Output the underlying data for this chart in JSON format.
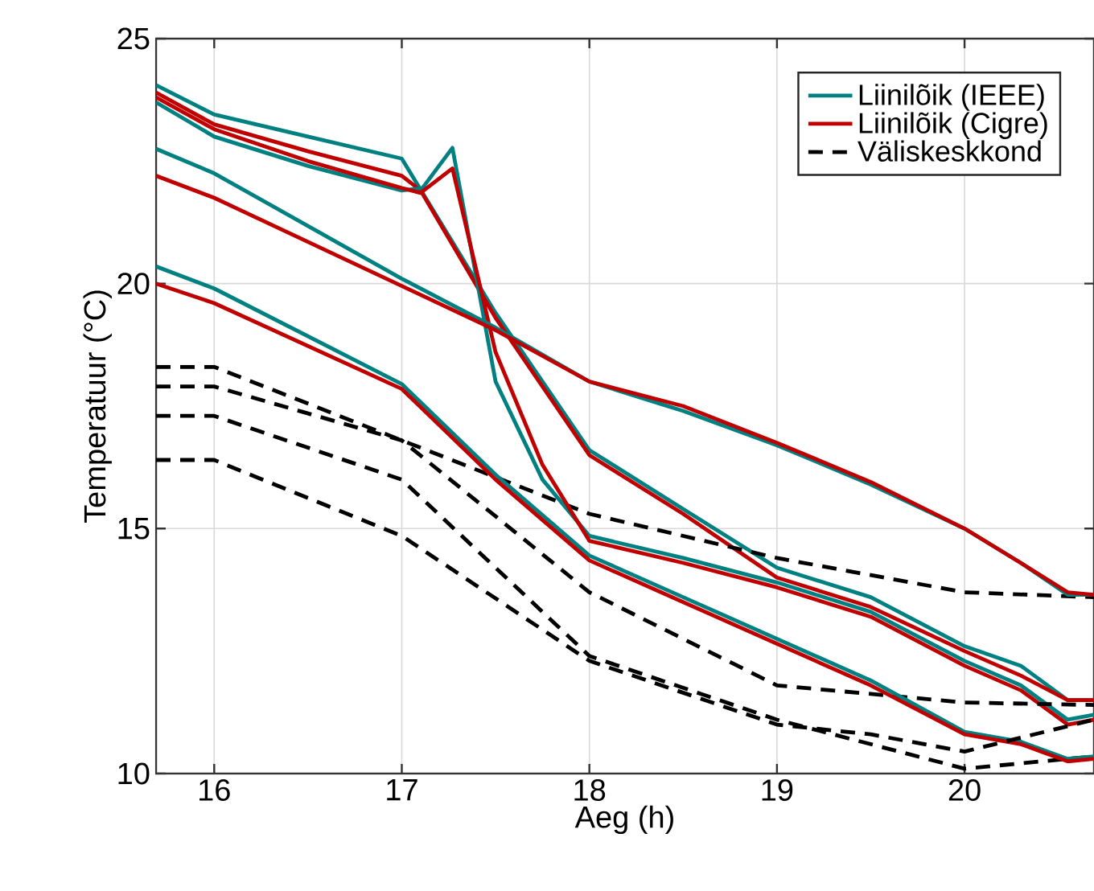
{
  "chart_data": {
    "type": "line",
    "xlabel": "Aeg (h)",
    "ylabel": "Temperatuur (°C)",
    "xlim": [
      15.69,
      20.69
    ],
    "ylim": [
      10,
      25
    ],
    "xticks": [
      16,
      17,
      18,
      19,
      20
    ],
    "yticks": [
      10,
      15,
      20,
      25
    ],
    "grid": true,
    "legend": "top right",
    "series": [
      {
        "name": "Liinilõik (IEEE)",
        "color": "#008080",
        "line_style": "solid",
        "x": [
          15.69,
          16,
          16.5,
          17,
          17.5,
          18,
          18.5,
          19,
          19.5,
          20,
          20.3,
          20.55,
          20.69
        ],
        "values": [
          24.05,
          23.45,
          23.0,
          22.55,
          19.4,
          16.6,
          15.4,
          14.2,
          13.6,
          12.6,
          12.2,
          11.5,
          11.5
        ]
      },
      {
        "name": "Liinilõik (Cigre)",
        "color": "#c00000",
        "line_style": "solid",
        "x": [
          15.69,
          16,
          16.5,
          17,
          17.1,
          17.5,
          18,
          18.5,
          19,
          19.5,
          20,
          20.3,
          20.55,
          20.69
        ],
        "values": [
          23.9,
          23.25,
          22.7,
          22.2,
          21.9,
          19.3,
          16.5,
          15.3,
          14.0,
          13.4,
          12.5,
          12.0,
          11.5,
          11.5
        ]
      },
      {
        "name": "Väliskeskkond",
        "color": "#000000",
        "line_style": "dashed",
        "x": [
          15.69,
          16,
          17,
          18,
          19,
          20,
          20.69
        ],
        "values": [
          18.3,
          18.3,
          16.8,
          15.3,
          14.4,
          13.7,
          13.6
        ]
      },
      {
        "color": "#008080",
        "line_style": "solid",
        "x": [
          15.69,
          16,
          16.5,
          17,
          17.11,
          17.27,
          17.5,
          17.75,
          18,
          18.5,
          19,
          19.5,
          20,
          20.3,
          20.55,
          20.69
        ],
        "values": [
          23.7,
          23.0,
          22.4,
          21.9,
          21.95,
          22.77,
          18.0,
          16.0,
          14.85,
          14.4,
          13.9,
          13.3,
          12.3,
          11.8,
          11.1,
          11.2
        ]
      },
      {
        "color": "#c00000",
        "line_style": "solid",
        "x": [
          15.69,
          16,
          16.5,
          17,
          17.1,
          17.27,
          17.5,
          17.75,
          18,
          18.5,
          19,
          19.5,
          20,
          20.3,
          20.55,
          20.69
        ],
        "values": [
          23.8,
          23.15,
          22.5,
          21.95,
          21.85,
          22.35,
          18.6,
          16.3,
          14.75,
          14.3,
          13.8,
          13.2,
          12.2,
          11.7,
          11.0,
          11.1
        ]
      },
      {
        "color": "#000000",
        "line_style": "dashed",
        "x": [
          15.69,
          16,
          17,
          18,
          19,
          20,
          20.69
        ],
        "values": [
          17.9,
          17.9,
          16.8,
          13.7,
          11.8,
          11.45,
          11.4
        ]
      },
      {
        "color": "#008080",
        "line_style": "solid",
        "x": [
          15.69,
          16,
          17,
          17.5,
          18,
          18.5,
          19,
          19.5,
          20,
          20.3,
          20.55,
          20.69
        ],
        "values": [
          22.75,
          22.25,
          20.1,
          19.1,
          18.0,
          17.4,
          16.7,
          15.9,
          15.0,
          14.3,
          13.65,
          13.65
        ]
      },
      {
        "color": "#c00000",
        "line_style": "solid",
        "x": [
          15.69,
          16,
          17,
          17.5,
          18,
          18.5,
          19,
          19.5,
          20,
          20.3,
          20.55,
          20.69
        ],
        "values": [
          22.2,
          21.75,
          19.95,
          19.05,
          18.0,
          17.5,
          16.75,
          15.95,
          15.0,
          14.3,
          13.7,
          13.65
        ]
      },
      {
        "color": "#000000",
        "line_style": "dashed",
        "x": [
          15.69,
          16,
          17,
          18,
          19,
          20,
          20.69
        ],
        "values": [
          17.3,
          17.3,
          16.0,
          12.4,
          11.1,
          10.1,
          10.35
        ]
      },
      {
        "color": "#008080",
        "line_style": "solid",
        "x": [
          15.69,
          16,
          17,
          17.5,
          18,
          18.5,
          19,
          19.5,
          20,
          20.3,
          20.55,
          20.69
        ],
        "values": [
          20.35,
          19.9,
          17.95,
          16.1,
          14.45,
          13.6,
          12.75,
          11.9,
          10.85,
          10.65,
          10.3,
          10.35
        ]
      },
      {
        "color": "#c00000",
        "line_style": "solid",
        "x": [
          15.69,
          16,
          17,
          17.5,
          18,
          18.5,
          19,
          19.5,
          20,
          20.3,
          20.55,
          20.69
        ],
        "values": [
          20.0,
          19.6,
          17.85,
          16.0,
          14.35,
          13.5,
          12.65,
          11.8,
          10.8,
          10.6,
          10.25,
          10.3
        ]
      },
      {
        "color": "#000000",
        "line_style": "dashed",
        "x": [
          15.69,
          16,
          17,
          18,
          19,
          19.5,
          20,
          20.69
        ],
        "values": [
          16.4,
          16.4,
          14.85,
          12.3,
          11.0,
          10.8,
          10.45,
          11.1
        ]
      }
    ]
  }
}
